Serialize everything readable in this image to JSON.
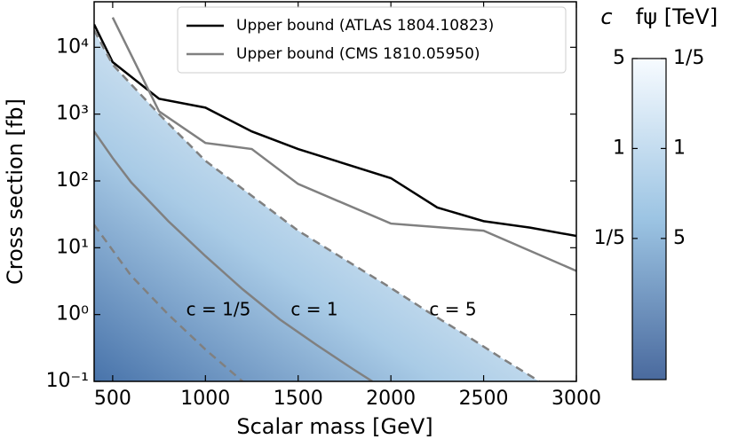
{
  "chart_data": {
    "type": "line",
    "xlabel": "Scalar mass [GeV]",
    "ylabel": "Cross section [fb]",
    "xlim": [
      400,
      3000
    ],
    "ylim": [
      0.1,
      48000
    ],
    "log_y": true,
    "xticks": [
      500,
      1000,
      1500,
      2000,
      2500,
      3000
    ],
    "yticks": [
      {
        "value": 0.1,
        "label": "10⁻¹"
      },
      {
        "value": 1,
        "label": "10⁰"
      },
      {
        "value": 10,
        "label": "10¹"
      },
      {
        "value": 100,
        "label": "10²"
      },
      {
        "value": 1000,
        "label": "10³"
      },
      {
        "value": 10000,
        "label": "10⁴"
      }
    ],
    "legend": "upper right",
    "series": [
      {
        "name": "Upper bound (ATLAS 1804.10823)",
        "color": "#000000",
        "x": [
          400,
          500,
          750,
          1000,
          1250,
          1500,
          2000,
          2250,
          2500,
          2750,
          3000
        ],
        "values": [
          22000,
          6000,
          1700,
          1250,
          550,
          300,
          110,
          40,
          25,
          20,
          15
        ]
      },
      {
        "name": "Upper bound (CMS 1810.05950)",
        "color": "#808080",
        "x": [
          500,
          750,
          1000,
          1250,
          1500,
          2000,
          2500,
          3000
        ],
        "values": [
          28000,
          1100,
          370,
          300,
          90,
          23,
          18,
          4.5
        ]
      },
      {
        "label": "c = 1/5",
        "color": "#808080",
        "dashed": true,
        "x": [
          400,
          600,
          800,
          1000,
          1200
        ],
        "values": [
          22,
          3.8,
          1.0,
          0.3,
          0.1
        ]
      },
      {
        "label": "c = 1",
        "color": "#808080",
        "dashed": false,
        "x": [
          400,
          500,
          600,
          800,
          1000,
          1200,
          1400,
          1600,
          1800,
          1900
        ],
        "values": [
          550,
          220,
          95,
          25,
          7.5,
          2.4,
          0.85,
          0.35,
          0.15,
          0.1
        ]
      },
      {
        "label": "c = 5",
        "color": "#808080",
        "dashed": true,
        "shade": true,
        "x": [
          400,
          500,
          750,
          1000,
          1250,
          1500,
          2000,
          2200,
          2400,
          2600,
          2800
        ],
        "values": [
          18000,
          5500,
          1000,
          200,
          60,
          18,
          2.5,
          1.1,
          0.5,
          0.22,
          0.1
        ]
      }
    ],
    "colorbar": {
      "label_left": "c",
      "label_right": "fψ [TeV]",
      "clim": [
        0.016,
        5
      ],
      "cticks": [
        5,
        1,
        {
          "value": 0.2,
          "label": "1/5"
        }
      ],
      "fticks": [
        {
          "value": 0.2,
          "label": "1/5"
        },
        1,
        5
      ]
    }
  }
}
